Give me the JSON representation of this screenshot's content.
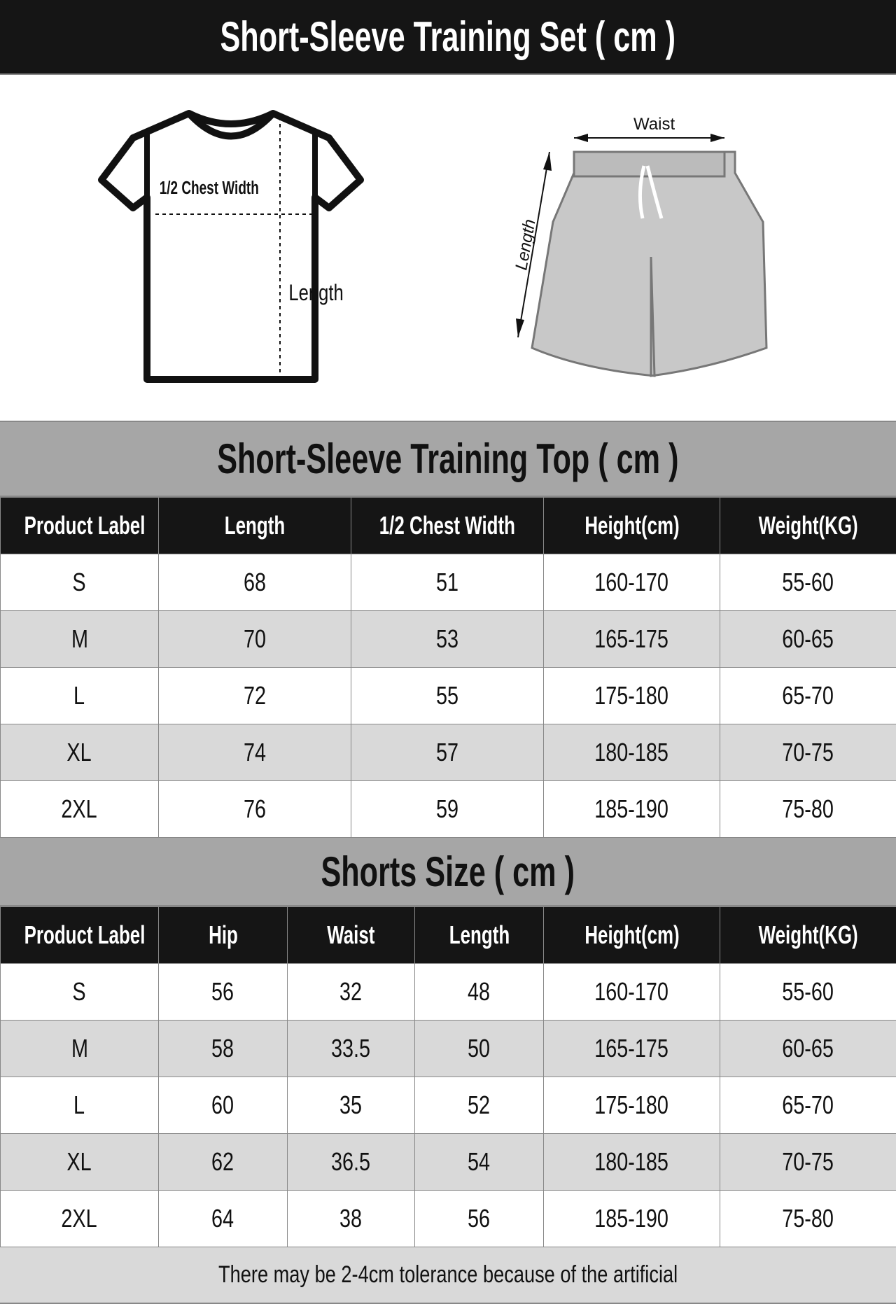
{
  "title": "Short-Sleeve Training Set ( cm )",
  "illustration": {
    "tshirt_chest_label": "1/2 Chest Width",
    "tshirt_length_label": "Length",
    "shorts_waist_label": "Waist",
    "shorts_length_label": "Length"
  },
  "top": {
    "title": "Short-Sleeve Training Top ( cm )",
    "headers": [
      "Product Label",
      "Length",
      "1/2 Chest Width",
      "Height(cm)",
      "Weight(KG)"
    ],
    "rows": [
      [
        "S",
        "68",
        "51",
        "160-170",
        "55-60"
      ],
      [
        "M",
        "70",
        "53",
        "165-175",
        "60-65"
      ],
      [
        "L",
        "72",
        "55",
        "175-180",
        "65-70"
      ],
      [
        "XL",
        "74",
        "57",
        "180-185",
        "70-75"
      ],
      [
        "2XL",
        "76",
        "59",
        "185-190",
        "75-80"
      ]
    ]
  },
  "shorts": {
    "title": "Shorts Size ( cm )",
    "headers": [
      "Product Label",
      "Hip",
      "Waist",
      "Length",
      "Height(cm)",
      "Weight(KG)"
    ],
    "rows": [
      [
        "S",
        "56",
        "32",
        "48",
        "160-170",
        "55-60"
      ],
      [
        "M",
        "58",
        "33.5",
        "50",
        "165-175",
        "60-65"
      ],
      [
        "L",
        "60",
        "35",
        "52",
        "175-180",
        "65-70"
      ],
      [
        "XL",
        "62",
        "36.5",
        "54",
        "180-185",
        "70-75"
      ],
      [
        "2XL",
        "64",
        "38",
        "56",
        "185-190",
        "75-80"
      ]
    ]
  },
  "footer": "There may be 2-4cm tolerance because of the artificial",
  "colors": {
    "header_black": "#151515",
    "section_gray": "#a6a6a6",
    "row_alt": "#d9d9d9"
  }
}
